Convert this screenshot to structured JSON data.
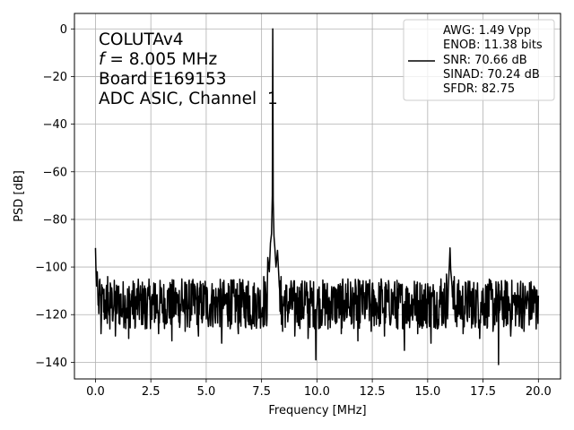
{
  "chart_data": {
    "type": "line",
    "title": "",
    "xlabel": "Frequency [MHz]",
    "ylabel": "PSD [dB]",
    "xlim": [
      -0.95,
      21.0
    ],
    "ylim": [
      -147,
      6.5
    ],
    "xticks": [
      0.0,
      2.5,
      5.0,
      7.5,
      10.0,
      12.5,
      15.0,
      17.5,
      20.0
    ],
    "xtick_labels": [
      "0.0",
      "2.5",
      "5.0",
      "7.5",
      "10.0",
      "12.5",
      "15.0",
      "17.5",
      "20.0"
    ],
    "yticks": [
      0,
      -20,
      -40,
      -60,
      -80,
      -100,
      -120,
      -140
    ],
    "ytick_labels": [
      "0",
      "−20",
      "−40",
      "−60",
      "−80",
      "−100",
      "−120",
      "−140"
    ],
    "grid": true,
    "legend_position": "top-right",
    "line_color": "#000000",
    "annotation": {
      "line1": "COLUTAv4",
      "freq_symbol": "f",
      "freq_rest": " = 8.005 MHz",
      "line3": "Board E169153",
      "line4": "ADC ASIC, Channel  1"
    },
    "legend": {
      "lines": [
        "AWG: 1.49 Vpp",
        "ENOB: 11.38 bits",
        "SNR: 70.66 dB",
        "SINAD: 70.24 dB",
        "SFDR: 82.75"
      ]
    },
    "noise_floor_range": [
      -132,
      -105
    ],
    "features": [
      {
        "label": "dc",
        "x": 0.0,
        "y": -92
      },
      {
        "label": "fundamental",
        "x": 8.005,
        "y": 0
      },
      {
        "label": "second harmonic",
        "x": 16.01,
        "y": -92
      },
      {
        "label": "deepest dip",
        "x": 18.2,
        "y": -141
      }
    ],
    "series": [
      {
        "points": [
          [
            0.0,
            -92
          ],
          [
            0.02,
            -100
          ],
          [
            0.05,
            -108
          ],
          [
            0.08,
            -102
          ],
          [
            0.12,
            -116
          ],
          [
            0.18,
            -106
          ],
          [
            0.25,
            -128
          ],
          [
            0.35,
            -110
          ],
          [
            0.45,
            -120
          ],
          [
            0.55,
            -104
          ],
          [
            0.65,
            -126
          ],
          [
            0.75,
            -111
          ],
          [
            0.9,
            -129
          ],
          [
            1.05,
            -108
          ],
          [
            1.2,
            -121
          ],
          [
            1.35,
            -114
          ],
          [
            1.5,
            -130
          ],
          [
            1.65,
            -110
          ],
          [
            1.8,
            -125
          ],
          [
            1.95,
            -109
          ],
          [
            2.1,
            -119
          ],
          [
            2.25,
            -126
          ],
          [
            2.4,
            -112
          ],
          [
            2.55,
            -122
          ],
          [
            2.7,
            -107
          ],
          [
            2.85,
            -128
          ],
          [
            3.0,
            -114
          ],
          [
            3.15,
            -122
          ],
          [
            3.3,
            -109
          ],
          [
            3.45,
            -131
          ],
          [
            3.6,
            -112
          ],
          [
            3.75,
            -118
          ],
          [
            3.9,
            -105
          ],
          [
            4.05,
            -127
          ],
          [
            4.2,
            -113
          ],
          [
            4.35,
            -120
          ],
          [
            4.5,
            -108
          ],
          [
            4.65,
            -129
          ],
          [
            4.8,
            -115
          ],
          [
            4.95,
            -106
          ],
          [
            5.1,
            -125
          ],
          [
            5.25,
            -111
          ],
          [
            5.4,
            -121
          ],
          [
            5.55,
            -109
          ],
          [
            5.7,
            -132
          ],
          [
            5.85,
            -114
          ],
          [
            6.0,
            -107
          ],
          [
            6.15,
            -124
          ],
          [
            6.3,
            -112
          ],
          [
            6.45,
            -128
          ],
          [
            6.6,
            -110
          ],
          [
            6.75,
            -119
          ],
          [
            6.9,
            -106
          ],
          [
            7.05,
            -126
          ],
          [
            7.2,
            -113
          ],
          [
            7.35,
            -109
          ],
          [
            7.5,
            -121
          ],
          [
            7.6,
            -104
          ],
          [
            7.7,
            -112
          ],
          [
            7.78,
            -96
          ],
          [
            7.85,
            -102
          ],
          [
            7.9,
            -90
          ],
          [
            7.95,
            -86
          ],
          [
            7.985,
            -70
          ],
          [
            8.005,
            0
          ],
          [
            8.025,
            -72
          ],
          [
            8.06,
            -87
          ],
          [
            8.1,
            -92
          ],
          [
            8.15,
            -100
          ],
          [
            8.22,
            -93
          ],
          [
            8.3,
            -108
          ],
          [
            8.38,
            -104
          ],
          [
            8.45,
            -127
          ],
          [
            8.55,
            -110
          ],
          [
            8.7,
            -120
          ],
          [
            8.85,
            -108
          ],
          [
            9.0,
            -129
          ],
          [
            9.15,
            -113
          ],
          [
            9.3,
            -122
          ],
          [
            9.45,
            -106
          ],
          [
            9.6,
            -130
          ],
          [
            9.75,
            -112
          ],
          [
            9.88,
            -121
          ],
          [
            9.95,
            -139
          ],
          [
            10.05,
            -110
          ],
          [
            10.2,
            -118
          ],
          [
            10.35,
            -107
          ],
          [
            10.5,
            -126
          ],
          [
            10.65,
            -113
          ],
          [
            10.8,
            -121
          ],
          [
            10.95,
            -109
          ],
          [
            11.1,
            -128
          ],
          [
            11.25,
            -114
          ],
          [
            11.4,
            -105
          ],
          [
            11.55,
            -124
          ],
          [
            11.7,
            -111
          ],
          [
            11.85,
            -131
          ],
          [
            12.0,
            -109
          ],
          [
            12.15,
            -120
          ],
          [
            12.3,
            -107
          ],
          [
            12.45,
            -127
          ],
          [
            12.6,
            -112
          ],
          [
            12.75,
            -118
          ],
          [
            12.9,
            -105
          ],
          [
            13.05,
            -129
          ],
          [
            13.2,
            -113
          ],
          [
            13.35,
            -121
          ],
          [
            13.5,
            -108
          ],
          [
            13.65,
            -126
          ],
          [
            13.8,
            -111
          ],
          [
            13.95,
            -135
          ],
          [
            14.1,
            -109
          ],
          [
            14.25,
            -120
          ],
          [
            14.4,
            -106
          ],
          [
            14.55,
            -128
          ],
          [
            14.7,
            -114
          ],
          [
            14.85,
            -119
          ],
          [
            15.0,
            -107
          ],
          [
            15.15,
            -132
          ],
          [
            15.3,
            -110
          ],
          [
            15.45,
            -122
          ],
          [
            15.6,
            -105
          ],
          [
            15.75,
            -118
          ],
          [
            15.85,
            -103
          ],
          [
            15.93,
            -110
          ],
          [
            15.98,
            -99
          ],
          [
            16.01,
            -92
          ],
          [
            16.04,
            -101
          ],
          [
            16.1,
            -108
          ],
          [
            16.2,
            -104
          ],
          [
            16.3,
            -121
          ],
          [
            16.45,
            -110
          ],
          [
            16.6,
            -128
          ],
          [
            16.75,
            -112
          ],
          [
            16.9,
            -106
          ],
          [
            17.05,
            -124
          ],
          [
            17.2,
            -113
          ],
          [
            17.35,
            -130
          ],
          [
            17.5,
            -109
          ],
          [
            17.65,
            -121
          ],
          [
            17.8,
            -106
          ],
          [
            17.95,
            -127
          ],
          [
            18.1,
            -112
          ],
          [
            18.2,
            -141
          ],
          [
            18.3,
            -110
          ],
          [
            18.45,
            -123
          ],
          [
            18.6,
            -107
          ],
          [
            18.75,
            -129
          ],
          [
            18.9,
            -113
          ],
          [
            19.05,
            -120
          ],
          [
            19.2,
            -106
          ],
          [
            19.35,
            -127
          ],
          [
            19.5,
            -111
          ],
          [
            19.65,
            -122
          ],
          [
            19.8,
            -108
          ],
          [
            19.9,
            -126
          ],
          [
            20.0,
            -112
          ]
        ]
      }
    ]
  }
}
